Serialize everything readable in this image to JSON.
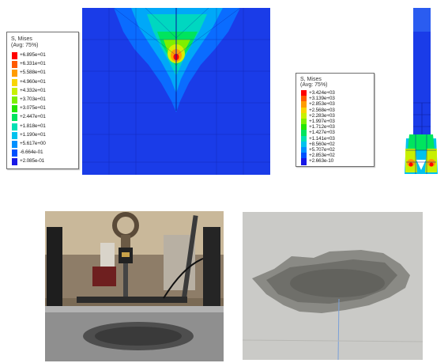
{
  "legend_left": {
    "title_line1": "S, Mises",
    "title_line2": "(Avg: 75%)",
    "entries": [
      {
        "label": "+6.895e+01",
        "color": "#ff0000"
      },
      {
        "label": "+6.331e+01",
        "color": "#ff5a00"
      },
      {
        "label": "+5.588e+01",
        "color": "#ff9c00"
      },
      {
        "label": "+4.960e+01",
        "color": "#f8d400"
      },
      {
        "label": "+4.332e+01",
        "color": "#c8f000"
      },
      {
        "label": "+3.703e+01",
        "color": "#7ef000"
      },
      {
        "label": "+3.075e+01",
        "color": "#25e600"
      },
      {
        "label": "+2.447e+01",
        "color": "#00e45e"
      },
      {
        "label": "+1.818e+01",
        "color": "#00e0b4"
      },
      {
        "label": "+1.190e+01",
        "color": "#00c2ee"
      },
      {
        "label": "+5.617e+00",
        "color": "#0090ff"
      },
      {
        "label": "-6.664e-01",
        "color": "#0050ff"
      },
      {
        "label": "+2.085e-01",
        "color": "#1818e6"
      }
    ]
  },
  "legend_right": {
    "title_line1": "S, Mises",
    "title_line2": "(Avg: 75%)",
    "entries": [
      {
        "label": "+3.424e+03",
        "color": "#ff0000"
      },
      {
        "label": "+3.139e+03",
        "color": "#ff5a00"
      },
      {
        "label": "+2.853e+03",
        "color": "#ff9c00"
      },
      {
        "label": "+2.568e+03",
        "color": "#f8d400"
      },
      {
        "label": "+2.283e+03",
        "color": "#c8f000"
      },
      {
        "label": "+1.997e+03",
        "color": "#7ef000"
      },
      {
        "label": "+1.712e+03",
        "color": "#25e600"
      },
      {
        "label": "+1.427e+03",
        "color": "#00e45e"
      },
      {
        "label": "+1.141e+03",
        "color": "#00e0b4"
      },
      {
        "label": "+8.560e+02",
        "color": "#00c2ee"
      },
      {
        "label": "+5.707e+02",
        "color": "#0090ff"
      },
      {
        "label": "+2.853e+02",
        "color": "#0050ff"
      },
      {
        "label": "+2.663e-10",
        "color": "#1818e6"
      }
    ]
  },
  "colors": {
    "mesh_blue": "#1a3ce8",
    "mesh_line": "#0a1a9a",
    "test_photo_bg": "#7f6e58",
    "slab_photo_bg": "#cfcfcb"
  }
}
